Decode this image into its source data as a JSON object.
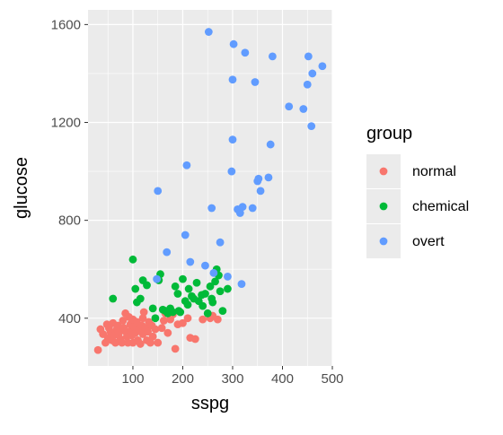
{
  "chart_data": {
    "type": "scatter",
    "xlabel": "sspg",
    "ylabel": "glucose",
    "xlim": [
      10,
      500
    ],
    "ylim": [
      205,
      1660
    ],
    "x_ticks": [
      100,
      200,
      300,
      400,
      500
    ],
    "y_ticks": [
      400,
      800,
      1200,
      1600
    ],
    "grid": true,
    "legend": {
      "title": "group",
      "position": "right"
    },
    "series": [
      {
        "name": "normal",
        "color": "#F8766D",
        "points": [
          [
            30,
            270
          ],
          [
            35,
            355
          ],
          [
            40,
            335
          ],
          [
            45,
            300
          ],
          [
            48,
            375
          ],
          [
            50,
            320
          ],
          [
            52,
            360
          ],
          [
            55,
            345
          ],
          [
            58,
            310
          ],
          [
            60,
            380
          ],
          [
            62,
            330
          ],
          [
            65,
            300
          ],
          [
            68,
            355
          ],
          [
            70,
            370
          ],
          [
            72,
            340
          ],
          [
            75,
            315
          ],
          [
            78,
            300
          ],
          [
            80,
            390
          ],
          [
            82,
            360
          ],
          [
            85,
            420
          ],
          [
            86,
            345
          ],
          [
            88,
            325
          ],
          [
            90,
            300
          ],
          [
            92,
            405
          ],
          [
            95,
            375
          ],
          [
            96,
            350
          ],
          [
            98,
            330
          ],
          [
            100,
            395
          ],
          [
            100,
            300
          ],
          [
            102,
            365
          ],
          [
            105,
            340
          ],
          [
            108,
            385
          ],
          [
            110,
            310
          ],
          [
            112,
            355
          ],
          [
            115,
            295
          ],
          [
            118,
            370
          ],
          [
            120,
            400
          ],
          [
            120,
            335
          ],
          [
            122,
            425
          ],
          [
            125,
            360
          ],
          [
            128,
            310
          ],
          [
            130,
            345
          ],
          [
            132,
            385
          ],
          [
            135,
            300
          ],
          [
            138,
            370
          ],
          [
            140,
            325
          ],
          [
            145,
            355
          ],
          [
            150,
            300
          ],
          [
            158,
            360
          ],
          [
            162,
            390
          ],
          [
            165,
            420
          ],
          [
            170,
            340
          ],
          [
            175,
            395
          ],
          [
            180,
            415
          ],
          [
            185,
            275
          ],
          [
            190,
            375
          ],
          [
            200,
            380
          ],
          [
            210,
            400
          ],
          [
            215,
            320
          ],
          [
            225,
            315
          ],
          [
            240,
            395
          ],
          [
            255,
            400
          ],
          [
            260,
            410
          ],
          [
            270,
            395
          ]
        ]
      },
      {
        "name": "chemical",
        "color": "#00BA38",
        "points": [
          [
            60,
            480
          ],
          [
            100,
            640
          ],
          [
            105,
            520
          ],
          [
            108,
            465
          ],
          [
            115,
            480
          ],
          [
            120,
            555
          ],
          [
            128,
            535
          ],
          [
            140,
            440
          ],
          [
            145,
            400
          ],
          [
            152,
            555
          ],
          [
            155,
            580
          ],
          [
            160,
            435
          ],
          [
            165,
            430
          ],
          [
            170,
            420
          ],
          [
            175,
            440
          ],
          [
            180,
            425
          ],
          [
            185,
            530
          ],
          [
            190,
            500
          ],
          [
            192,
            430
          ],
          [
            195,
            425
          ],
          [
            200,
            560
          ],
          [
            205,
            470
          ],
          [
            210,
            455
          ],
          [
            212,
            520
          ],
          [
            218,
            490
          ],
          [
            222,
            480
          ],
          [
            228,
            545
          ],
          [
            232,
            470
          ],
          [
            238,
            495
          ],
          [
            240,
            450
          ],
          [
            245,
            500
          ],
          [
            250,
            420
          ],
          [
            255,
            530
          ],
          [
            258,
            480
          ],
          [
            260,
            465
          ],
          [
            265,
            550
          ],
          [
            268,
            600
          ],
          [
            272,
            575
          ],
          [
            275,
            510
          ],
          [
            280,
            430
          ],
          [
            290,
            520
          ]
        ]
      },
      {
        "name": "overt",
        "color": "#619CFF",
        "points": [
          [
            148,
            560
          ],
          [
            150,
            920
          ],
          [
            168,
            670
          ],
          [
            205,
            740
          ],
          [
            208,
            1025
          ],
          [
            215,
            630
          ],
          [
            245,
            615
          ],
          [
            252,
            1570
          ],
          [
            258,
            850
          ],
          [
            262,
            585
          ],
          [
            275,
            710
          ],
          [
            290,
            570
          ],
          [
            298,
            1000
          ],
          [
            300,
            1375
          ],
          [
            300,
            1130
          ],
          [
            302,
            1520
          ],
          [
            310,
            845
          ],
          [
            315,
            830
          ],
          [
            318,
            540
          ],
          [
            320,
            855
          ],
          [
            325,
            1485
          ],
          [
            340,
            850
          ],
          [
            345,
            1365
          ],
          [
            350,
            960
          ],
          [
            352,
            970
          ],
          [
            356,
            920
          ],
          [
            372,
            975
          ],
          [
            376,
            1110
          ],
          [
            380,
            1470
          ],
          [
            413,
            1265
          ],
          [
            442,
            1255
          ],
          [
            450,
            1355
          ],
          [
            452,
            1470
          ],
          [
            458,
            1185
          ],
          [
            460,
            1400
          ],
          [
            480,
            1430
          ]
        ]
      }
    ]
  }
}
